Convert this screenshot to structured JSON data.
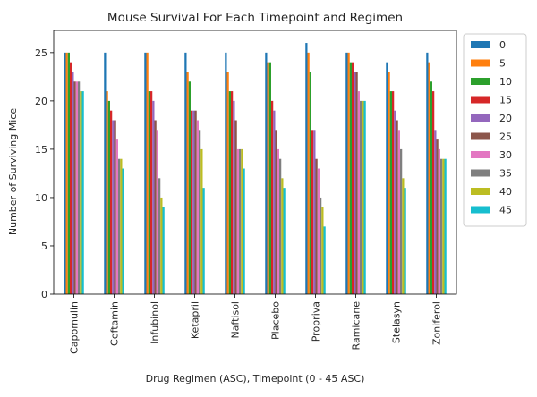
{
  "chart_data": {
    "type": "bar",
    "title": "Mouse Survival For Each Timepoint and Regimen",
    "xlabel": "Drug Regimen (ASC), Timepoint (0 - 45 ASC)",
    "ylabel": "Number of Surviving Mice",
    "ylim": [
      0,
      27.3
    ],
    "yticks": [
      0,
      5,
      10,
      15,
      20,
      25
    ],
    "grid": false,
    "legend_position": "right-outside-top",
    "categories": [
      "Capomulin",
      "Ceftamin",
      "Infubinol",
      "Ketapril",
      "Naftisol",
      "Placebo",
      "Propriva",
      "Ramicane",
      "Stelasyn",
      "Zoniferol"
    ],
    "series": [
      {
        "name": "0",
        "color": "#1f77b4",
        "values": [
          25,
          25,
          25,
          25,
          25,
          25,
          26,
          25,
          24,
          25
        ]
      },
      {
        "name": "5",
        "color": "#ff7f0e",
        "values": [
          25,
          21,
          25,
          23,
          23,
          24,
          25,
          25,
          23,
          24
        ]
      },
      {
        "name": "10",
        "color": "#2ca02c",
        "values": [
          25,
          20,
          21,
          22,
          21,
          24,
          23,
          24,
          21,
          22
        ]
      },
      {
        "name": "15",
        "color": "#d62728",
        "values": [
          24,
          19,
          21,
          19,
          21,
          20,
          17,
          24,
          21,
          21
        ]
      },
      {
        "name": "20",
        "color": "#9467bd",
        "values": [
          23,
          18,
          20,
          19,
          20,
          19,
          17,
          23,
          19,
          17
        ]
      },
      {
        "name": "25",
        "color": "#8c564b",
        "values": [
          22,
          18,
          18,
          19,
          18,
          17,
          14,
          23,
          18,
          16
        ]
      },
      {
        "name": "30",
        "color": "#e377c2",
        "values": [
          22,
          16,
          17,
          18,
          15,
          15,
          13,
          21,
          17,
          15
        ]
      },
      {
        "name": "35",
        "color": "#7f7f7f",
        "values": [
          22,
          14,
          12,
          17,
          15,
          14,
          10,
          20,
          15,
          14
        ]
      },
      {
        "name": "40",
        "color": "#bcbd22",
        "values": [
          21,
          14,
          10,
          15,
          15,
          12,
          9,
          20,
          12,
          14
        ]
      },
      {
        "name": "45",
        "color": "#17becf",
        "values": [
          21,
          13,
          9,
          11,
          13,
          11,
          7,
          20,
          11,
          14
        ]
      }
    ]
  }
}
